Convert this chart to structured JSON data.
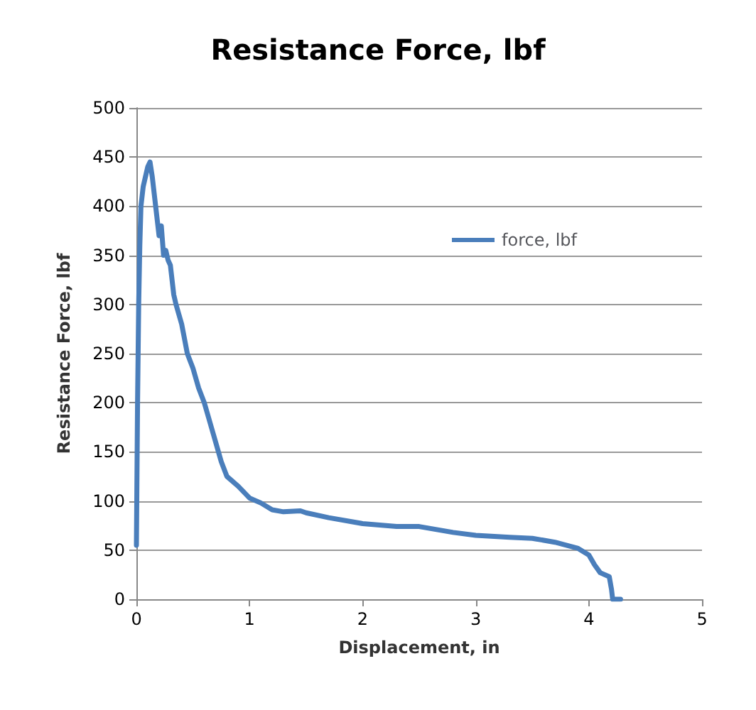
{
  "chart_data": {
    "type": "line",
    "title": "Resistance Force, lbf",
    "xlabel": "Displacement, in",
    "ylabel": "Resistance Force, lbf",
    "x": [
      0,
      0.01,
      0.02,
      0.03,
      0.04,
      0.06,
      0.08,
      0.1,
      0.12,
      0.14,
      0.16,
      0.18,
      0.2,
      0.22,
      0.24,
      0.26,
      0.28,
      0.3,
      0.33,
      0.35,
      0.4,
      0.45,
      0.5,
      0.55,
      0.6,
      0.65,
      0.7,
      0.75,
      0.8,
      0.9,
      1.0,
      1.1,
      1.2,
      1.3,
      1.45,
      1.5,
      1.7,
      2.0,
      2.3,
      2.5,
      2.8,
      3.0,
      3.3,
      3.5,
      3.7,
      3.9,
      4.0,
      4.05,
      4.1,
      4.18,
      4.2,
      4.21,
      4.28
    ],
    "series": [
      {
        "name": "force, lbf",
        "color": "#4a7ebb",
        "values": [
          55,
          200,
          300,
          360,
          400,
          420,
          430,
          440,
          445,
          430,
          410,
          390,
          370,
          380,
          350,
          355,
          345,
          340,
          310,
          300,
          280,
          250,
          235,
          215,
          200,
          180,
          160,
          140,
          125,
          115,
          103,
          98,
          91,
          89,
          90,
          88,
          83,
          77,
          74,
          74,
          68,
          65,
          63,
          62,
          58,
          52,
          45,
          35,
          27,
          23,
          10,
          0,
          0
        ]
      }
    ],
    "xlim": [
      0,
      5
    ],
    "xticks": [
      0,
      1,
      2,
      3,
      4,
      5
    ],
    "ylim": [
      0,
      500
    ],
    "yticks": [
      0,
      50,
      100,
      150,
      200,
      250,
      300,
      350,
      400,
      450,
      500
    ],
    "grid": "y",
    "legend": "top right",
    "marker": "none",
    "line_style": "solid"
  }
}
